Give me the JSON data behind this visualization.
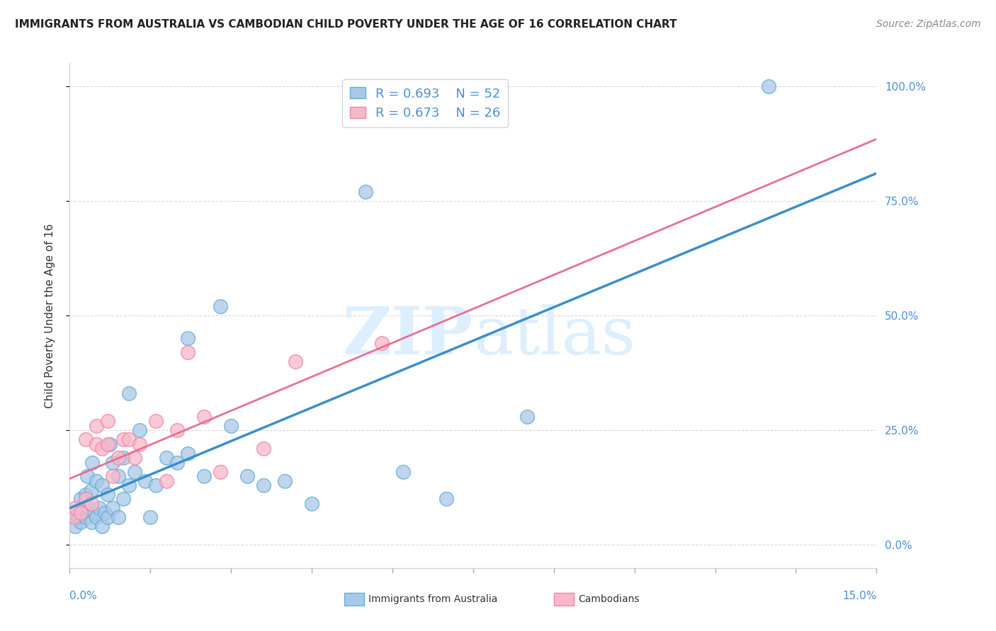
{
  "title": "IMMIGRANTS FROM AUSTRALIA VS CAMBODIAN CHILD POVERTY UNDER THE AGE OF 16 CORRELATION CHART",
  "source": "Source: ZipAtlas.com",
  "ylabel": "Child Poverty Under the Age of 16",
  "ylabel_right_ticks": [
    "0.0%",
    "25.0%",
    "50.0%",
    "75.0%",
    "100.0%"
  ],
  "ylabel_right_vals": [
    0.0,
    0.25,
    0.5,
    0.75,
    1.0
  ],
  "xlim": [
    0.0,
    0.15
  ],
  "ylim": [
    -0.05,
    1.05
  ],
  "legend_blue_r": "R = 0.693",
  "legend_blue_n": "N = 52",
  "legend_pink_r": "R = 0.673",
  "legend_pink_n": "N = 26",
  "blue_scatter_x": [
    0.0008,
    0.001,
    0.0015,
    0.002,
    0.002,
    0.0025,
    0.003,
    0.003,
    0.0032,
    0.0035,
    0.004,
    0.004,
    0.0042,
    0.0045,
    0.005,
    0.005,
    0.0055,
    0.006,
    0.006,
    0.0065,
    0.007,
    0.007,
    0.0075,
    0.008,
    0.008,
    0.009,
    0.009,
    0.01,
    0.01,
    0.011,
    0.011,
    0.012,
    0.013,
    0.014,
    0.015,
    0.016,
    0.018,
    0.02,
    0.022,
    0.022,
    0.025,
    0.028,
    0.03,
    0.033,
    0.036,
    0.04,
    0.045,
    0.055,
    0.062,
    0.07,
    0.085,
    0.13
  ],
  "blue_scatter_y": [
    0.07,
    0.04,
    0.06,
    0.05,
    0.1,
    0.08,
    0.06,
    0.11,
    0.15,
    0.08,
    0.05,
    0.12,
    0.18,
    0.07,
    0.06,
    0.14,
    0.08,
    0.04,
    0.13,
    0.07,
    0.06,
    0.11,
    0.22,
    0.08,
    0.18,
    0.06,
    0.15,
    0.1,
    0.19,
    0.13,
    0.33,
    0.16,
    0.25,
    0.14,
    0.06,
    0.13,
    0.19,
    0.18,
    0.2,
    0.45,
    0.15,
    0.52,
    0.26,
    0.15,
    0.13,
    0.14,
    0.09,
    0.77,
    0.16,
    0.1,
    0.28,
    1.0
  ],
  "pink_scatter_x": [
    0.0008,
    0.001,
    0.002,
    0.003,
    0.003,
    0.004,
    0.005,
    0.005,
    0.006,
    0.007,
    0.007,
    0.008,
    0.009,
    0.01,
    0.011,
    0.012,
    0.013,
    0.016,
    0.018,
    0.02,
    0.022,
    0.025,
    0.028,
    0.036,
    0.042,
    0.058
  ],
  "pink_scatter_y": [
    0.06,
    0.08,
    0.07,
    0.1,
    0.23,
    0.09,
    0.22,
    0.26,
    0.21,
    0.22,
    0.27,
    0.15,
    0.19,
    0.23,
    0.23,
    0.19,
    0.22,
    0.27,
    0.14,
    0.25,
    0.42,
    0.28,
    0.16,
    0.21,
    0.4,
    0.44
  ],
  "blue_color": "#a8c8e8",
  "blue_edge_color": "#6aaed6",
  "blue_line_color": "#3a8fca",
  "pink_color": "#f8b8c8",
  "pink_edge_color": "#e88aaa",
  "pink_line_color": "#e87090",
  "grid_color": "#d8d8d8",
  "background_color": "#ffffff",
  "watermark_color": "#ddeeff",
  "title_fontsize": 11,
  "label_fontsize": 11,
  "tick_fontsize": 11,
  "source_fontsize": 10
}
